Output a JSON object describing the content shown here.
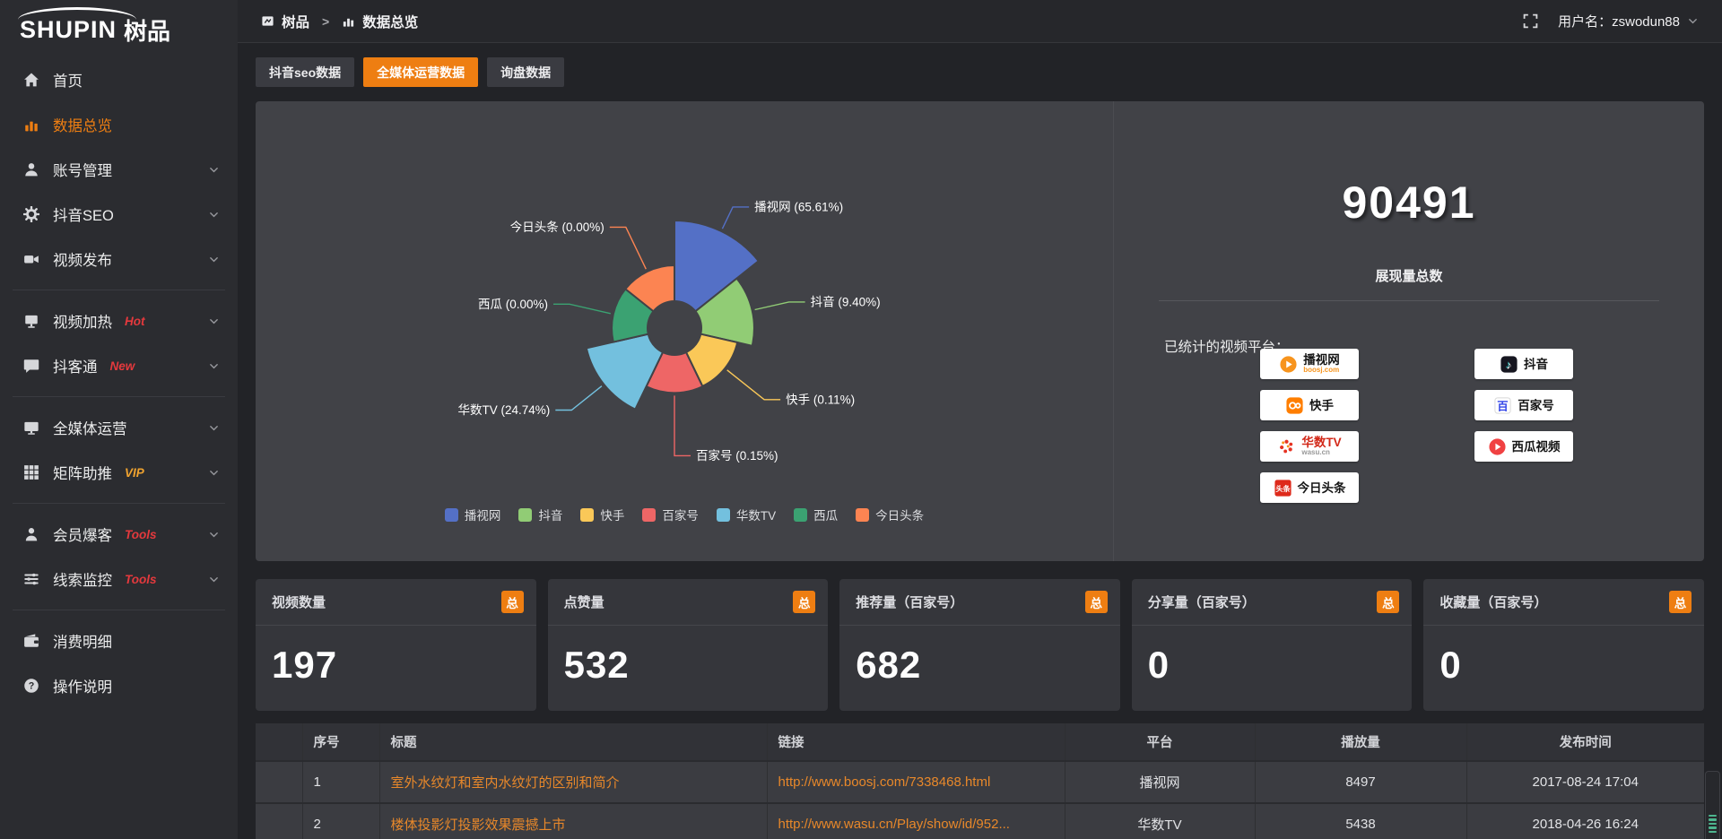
{
  "app": {
    "logo_en": "SHUPIN",
    "logo_cn": "树品"
  },
  "topbar": {
    "breadcrumb": [
      {
        "label": "树品"
      },
      {
        "label": "数据总览"
      }
    ],
    "separator": ">",
    "username": "用户名：zswodun88"
  },
  "sidebar": {
    "items": [
      {
        "label": "首页",
        "icon": "home-icon"
      },
      {
        "label": "数据总览",
        "icon": "bar-chart-icon",
        "active": true
      },
      {
        "label": "账号管理",
        "icon": "user-icon",
        "expandable": true
      },
      {
        "label": "抖音SEO",
        "icon": "gear-icon",
        "expandable": true
      },
      {
        "label": "视频发布",
        "icon": "video-icon",
        "expandable": true
      },
      {
        "divider": true
      },
      {
        "label": "视频加热",
        "icon": "screen-icon",
        "badge": "Hot",
        "badge_color": "#e5393d",
        "expandable": true
      },
      {
        "label": "抖客通",
        "icon": "chat-icon",
        "badge": "New",
        "badge_color": "#e5393d",
        "expandable": true
      },
      {
        "divider": true
      },
      {
        "label": "全媒体运营",
        "icon": "monitor-icon",
        "expandable": true
      },
      {
        "label": "矩阵助推",
        "icon": "grid-icon",
        "badge": "VIP",
        "badge_color": "#f0a32f",
        "expandable": true
      },
      {
        "divider": true
      },
      {
        "label": "会员爆客",
        "icon": "member-icon",
        "badge": "Tools",
        "badge_color": "#e5393d",
        "expandable": true
      },
      {
        "label": "线索监控",
        "icon": "sliders-icon",
        "badge": "Tools",
        "badge_color": "#e5393d",
        "expandable": true
      },
      {
        "divider": true
      },
      {
        "label": "消费明细",
        "icon": "wallet-icon"
      },
      {
        "label": "操作说明",
        "icon": "question-icon"
      }
    ]
  },
  "tabs": [
    {
      "label": "抖音seo数据",
      "active": false
    },
    {
      "label": "全媒体运营数据",
      "active": true
    },
    {
      "label": "询盘数据",
      "active": false
    }
  ],
  "chart_data": {
    "type": "pie",
    "variant": "nightingale-rose-donut",
    "categories": [
      "播视网",
      "抖音",
      "快手",
      "百家号",
      "华数TV",
      "西瓜",
      "今日头条"
    ],
    "values_percent": [
      65.61,
      9.4,
      0.11,
      0.15,
      24.74,
      0.0,
      0.0
    ],
    "labels": [
      "播视网 (65.61%)",
      "抖音 (9.40%)",
      "快手 (0.11%)",
      "百家号 (0.15%)",
      "华数TV (24.74%)",
      "西瓜 (0.00%)",
      "今日头条 (0.00%)"
    ],
    "colors": [
      "#5470c6",
      "#91cc75",
      "#fac858",
      "#ee6666",
      "#73c0de",
      "#3ba272",
      "#fc8452"
    ],
    "legend": [
      "播视网",
      "抖音",
      "快手",
      "百家号",
      "华数TV",
      "西瓜",
      "今日头条"
    ],
    "legend_position": "bottom"
  },
  "summary": {
    "total_value": "90491",
    "total_label": "展现量总数",
    "platforms_title": "已统计的视频平台：",
    "platforms_left": [
      {
        "name": "播视网",
        "sub": "boosj.com",
        "icon": "boosj-logo"
      },
      {
        "name": "快手",
        "sub": "",
        "icon": "kuaishou-logo"
      },
      {
        "name": "华数TV",
        "sub": "wasu.cn",
        "icon": "wasu-logo"
      },
      {
        "name": "今日头条",
        "sub": "",
        "icon": "toutiao-logo"
      }
    ],
    "platforms_right": [
      {
        "name": "抖音",
        "sub": "",
        "icon": "douyin-logo"
      },
      {
        "name": "百家号",
        "sub": "",
        "icon": "baijiahao-logo"
      },
      {
        "name": "西瓜视频",
        "sub": "",
        "icon": "xigua-logo"
      }
    ]
  },
  "stat_cards": [
    {
      "label": "视频数量",
      "badge": "总",
      "value": "197"
    },
    {
      "label": "点赞量",
      "badge": "总",
      "value": "532"
    },
    {
      "label": "推荐量（百家号）",
      "badge": "总",
      "value": "682"
    },
    {
      "label": "分享量（百家号）",
      "badge": "总",
      "value": "0"
    },
    {
      "label": "收藏量（百家号）",
      "badge": "总",
      "value": "0"
    }
  ],
  "table": {
    "headers": [
      "序号",
      "标题",
      "链接",
      "平台",
      "播放量",
      "发布时间"
    ],
    "rows": [
      {
        "index": "1",
        "title": "室外水纹灯和室内水纹灯的区别和简介",
        "link": "http://www.boosj.com/7338468.html",
        "platform": "播视网",
        "plays": "8497",
        "time": "2017-08-24 17:04"
      },
      {
        "index": "2",
        "title": "楼体投影灯投影效果震撼上市",
        "link": "http://www.wasu.cn/Play/show/id/952...",
        "platform": "华数TV",
        "plays": "5438",
        "time": "2018-04-26 16:24"
      }
    ]
  }
}
